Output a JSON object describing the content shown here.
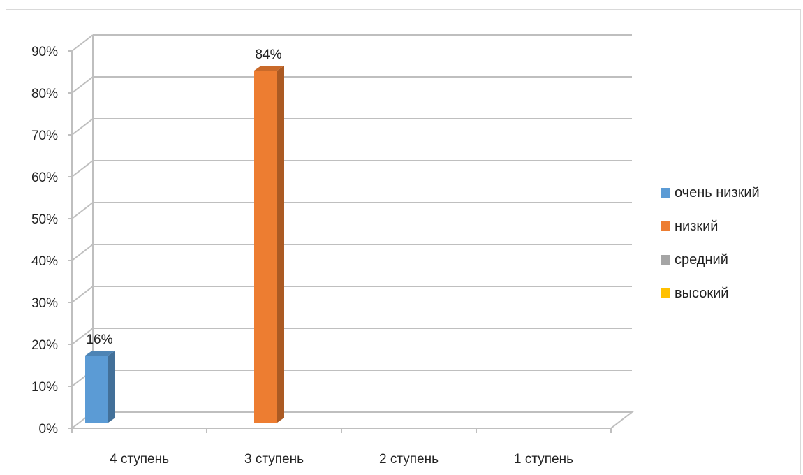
{
  "chart_data": {
    "type": "bar",
    "categories": [
      "4 ступень",
      "3 ступень",
      "2 ступень",
      "1 ступень"
    ],
    "series": [
      {
        "name": "очень низкий",
        "values": [
          0.16,
          0,
          0,
          0
        ],
        "color": "#5b9bd5"
      },
      {
        "name": "низкий",
        "values": [
          0,
          0.84,
          0,
          0
        ],
        "color": "#ed7d31"
      },
      {
        "name": "средний",
        "values": [
          0,
          0,
          0,
          0
        ],
        "color": "#a5a5a5"
      },
      {
        "name": "высокий",
        "values": [
          0,
          0,
          0,
          0
        ],
        "color": "#ffc000"
      }
    ],
    "data_labels": [
      "16%",
      "84%"
    ],
    "y_ticks": [
      "0%",
      "10%",
      "20%",
      "30%",
      "40%",
      "50%",
      "60%",
      "70%",
      "80%",
      "90%"
    ],
    "ylim": [
      0,
      0.9
    ],
    "grid": true,
    "legend_position": "right",
    "style": "3d-clustered-column"
  }
}
